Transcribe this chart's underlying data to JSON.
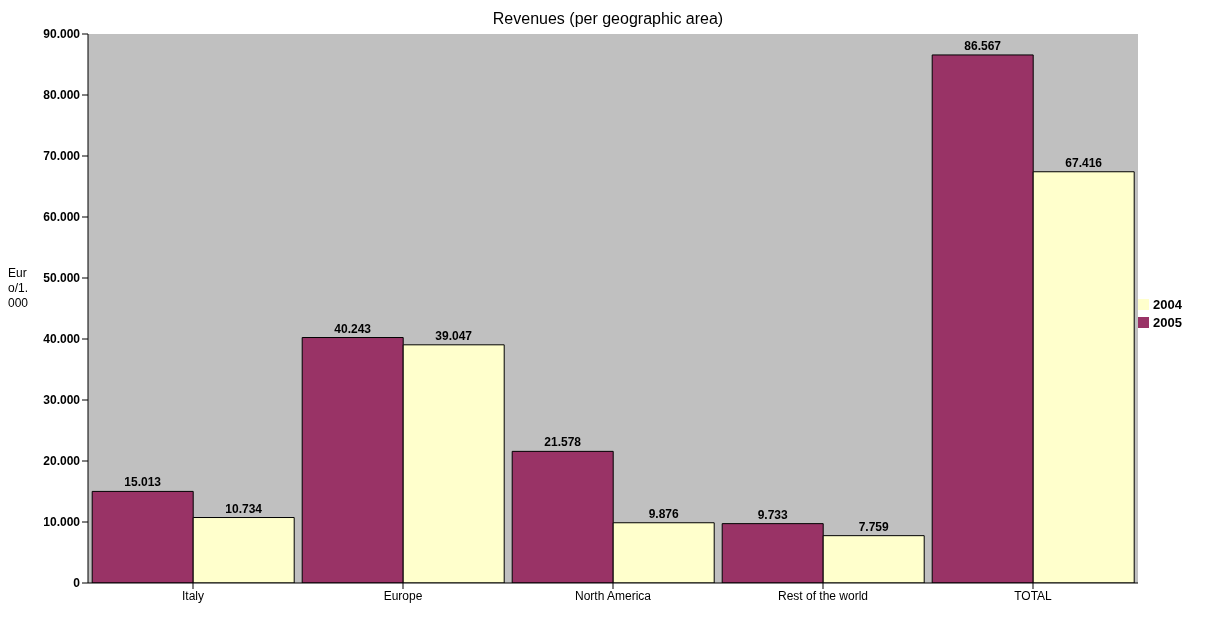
{
  "chart_data": {
    "type": "bar",
    "title": "Revenues (per geographic area)",
    "ylabel": "Euro/1.000",
    "categories": [
      "Italy",
      "Europe",
      "North America",
      "Rest of the world",
      "TOTAL"
    ],
    "series": [
      {
        "name": "2005",
        "color": "#993366",
        "values": [
          15013,
          40243,
          21578,
          9733,
          86567
        ],
        "value_labels": [
          "15.013",
          "40.243",
          "21.578",
          "9.733",
          "86.567"
        ]
      },
      {
        "name": "2004",
        "color": "#ffffcc",
        "values": [
          10734,
          39047,
          9876,
          7759,
          67416
        ],
        "value_labels": [
          "10.734",
          "39.047",
          "9.876",
          "7.759",
          "67.416"
        ]
      }
    ],
    "ylim": [
      0,
      90000
    ],
    "yticks": [
      {
        "value": 0,
        "label": "0"
      },
      {
        "value": 10000,
        "label": "10.000"
      },
      {
        "value": 20000,
        "label": "20.000"
      },
      {
        "value": 30000,
        "label": "30.000"
      },
      {
        "value": 40000,
        "label": "40.000"
      },
      {
        "value": 50000,
        "label": "50.000"
      },
      {
        "value": 60000,
        "label": "60.000"
      },
      {
        "value": 70000,
        "label": "70.000"
      },
      {
        "value": 80000,
        "label": "80.000"
      },
      {
        "value": 90000,
        "label": "90.000"
      }
    ],
    "grid": false,
    "legend": "right"
  }
}
